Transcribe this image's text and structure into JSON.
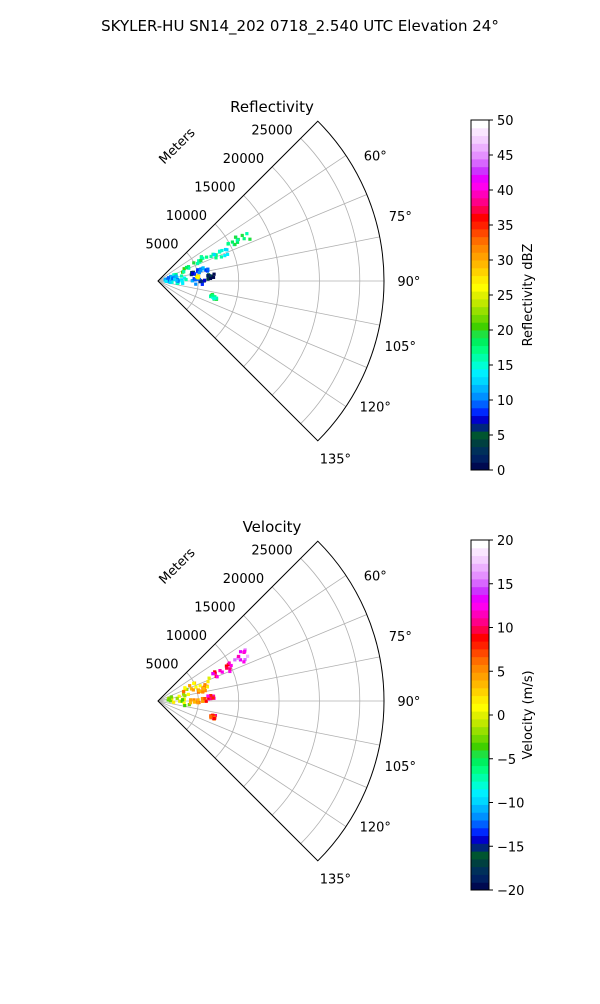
{
  "figure": {
    "title": "SKYLER-HU  SN14_202  0718_2.540 UTC Elevation 24°"
  },
  "chart_data": [
    {
      "type": "heatmap",
      "projection": "polar-sector",
      "title": "Reflectivity",
      "radial_label": "Meters",
      "radial_ticks": [
        "5000",
        "10000",
        "15000",
        "20000",
        "25000"
      ],
      "radial_tick_values": [
        5000,
        10000,
        15000,
        20000,
        25000
      ],
      "rlim": [
        0,
        28000
      ],
      "theta_range_deg": [
        45,
        135
      ],
      "theta_gridlines_deg": [
        45,
        56.25,
        67.5,
        78.75,
        90,
        101.25,
        112.5,
        123.75,
        135
      ],
      "angle_labels": [
        "60°",
        "75°",
        "90°",
        "105°",
        "120°",
        "135°"
      ],
      "angle_label_values": [
        60,
        75,
        90,
        105,
        120,
        135
      ],
      "grid": true,
      "colorbar": {
        "label": "Reflectivity dBZ",
        "min": 0,
        "max": 50,
        "ticks": [
          "0",
          "5",
          "10",
          "15",
          "20",
          "25",
          "30",
          "35",
          "40",
          "45",
          "50"
        ],
        "colors": [
          "#000a50",
          "#002060",
          "#00305a",
          "#004040",
          "#005530",
          "#00267a",
          "#0000cc",
          "#0028ff",
          "#0060ff",
          "#0090ff",
          "#00b4ff",
          "#00d8ff",
          "#00f0ff",
          "#00ffd4",
          "#00ffaa",
          "#00ff80",
          "#00f060",
          "#20e040",
          "#40d000",
          "#70d800",
          "#98e000",
          "#c0e800",
          "#e0f000",
          "#ffff00",
          "#ffec00",
          "#ffd200",
          "#ffb800",
          "#ffa000",
          "#ff8800",
          "#ff6c00",
          "#ff4800",
          "#ff2000",
          "#ff0000",
          "#ff0048",
          "#ff0088",
          "#ff00bb",
          "#ff00ee",
          "#e800ff",
          "#cc33ff",
          "#d866ff",
          "#e490ff",
          "#ecb0ff",
          "#f4cfff",
          "#fae6ff",
          "#ffffff"
        ]
      },
      "echo_clusters": [
        {
          "r_m": [
            3000,
            7800
          ],
          "theta_deg": [
            60,
            71
          ],
          "value": 18
        },
        {
          "r_m": [
            9800,
            12600
          ],
          "theta_deg": [
            60,
            66
          ],
          "value": 17
        },
        {
          "r_m": [
            7400,
            9600
          ],
          "theta_deg": [
            64,
            70
          ],
          "value": 16
        },
        {
          "r_m": [
            1500,
            3500
          ],
          "theta_deg": [
            68,
            98
          ],
          "value": 14
        },
        {
          "r_m": [
            800,
            2500
          ],
          "theta_deg": [
            72,
            100
          ],
          "value": 12
        },
        {
          "r_m": [
            5000,
            6400
          ],
          "theta_deg": [
            73,
            79
          ],
          "value": 10
        },
        {
          "r_m": [
            4000,
            6000
          ],
          "theta_deg": [
            86,
            95
          ],
          "value": 9
        },
        {
          "r_m": [
            6800,
            7600
          ],
          "theta_deg": [
            104,
            108
          ],
          "value": 18
        },
        {
          "r_m": [
            4800,
            5200
          ],
          "theta_deg": [
            82,
            86
          ],
          "value": 28
        },
        {
          "r_m": [
            4200,
            4600
          ],
          "theta_deg": [
            76,
            80
          ],
          "value": 6
        },
        {
          "r_m": [
            6200,
            7000
          ],
          "theta_deg": [
            83,
            88
          ],
          "value": 3
        }
      ]
    },
    {
      "type": "heatmap",
      "projection": "polar-sector",
      "title": "Velocity",
      "radial_label": "Meters",
      "radial_ticks": [
        "5000",
        "10000",
        "15000",
        "20000",
        "25000"
      ],
      "radial_tick_values": [
        5000,
        10000,
        15000,
        20000,
        25000
      ],
      "rlim": [
        0,
        28000
      ],
      "theta_range_deg": [
        45,
        135
      ],
      "theta_gridlines_deg": [
        45,
        56.25,
        67.5,
        78.75,
        90,
        101.25,
        112.5,
        123.75,
        135
      ],
      "angle_labels": [
        "60°",
        "75°",
        "90°",
        "105°",
        "120°",
        "135°"
      ],
      "angle_label_values": [
        60,
        75,
        90,
        105,
        120,
        135
      ],
      "grid": true,
      "colorbar": {
        "label": "Velocity (m/s)",
        "min": -20,
        "max": 20,
        "ticks": [
          "−20",
          "−15",
          "−10",
          "−5",
          "0",
          "5",
          "10",
          "15",
          "20"
        ],
        "colors": [
          "#000a50",
          "#002060",
          "#00305a",
          "#004040",
          "#005530",
          "#00267a",
          "#0000cc",
          "#0028ff",
          "#0060ff",
          "#0090ff",
          "#00b4ff",
          "#00d8ff",
          "#00f0ff",
          "#00ffd4",
          "#00ffaa",
          "#00ff80",
          "#00f060",
          "#20e040",
          "#40d000",
          "#70d800",
          "#98e000",
          "#c0e800",
          "#e0f000",
          "#ffff00",
          "#ffec00",
          "#ffd200",
          "#ffb800",
          "#ffa000",
          "#ff8800",
          "#ff6c00",
          "#ff4800",
          "#ff2000",
          "#ff0000",
          "#ff0048",
          "#ff0088",
          "#ff00bb",
          "#ff00ee",
          "#e800ff",
          "#cc33ff",
          "#d866ff",
          "#e490ff",
          "#ecb0ff",
          "#f4cfff",
          "#fae6ff",
          "#ffffff"
        ]
      },
      "echo_clusters": [
        {
          "r_m": [
            1000,
            4000
          ],
          "theta_deg": [
            68,
            100
          ],
          "value": -1
        },
        {
          "r_m": [
            3000,
            7000
          ],
          "theta_deg": [
            63,
            74
          ],
          "value": 3
        },
        {
          "r_m": [
            7600,
            10000
          ],
          "theta_deg": [
            62,
            69
          ],
          "value": 11
        },
        {
          "r_m": [
            9800,
            12600
          ],
          "theta_deg": [
            59,
            66
          ],
          "value": 14
        },
        {
          "r_m": [
            5000,
            6400
          ],
          "theta_deg": [
            73,
            79
          ],
          "value": 4
        },
        {
          "r_m": [
            4000,
            6000
          ],
          "theta_deg": [
            86,
            95
          ],
          "value": 6
        },
        {
          "r_m": [
            6800,
            7600
          ],
          "theta_deg": [
            104,
            108
          ],
          "value": 8
        },
        {
          "r_m": [
            6200,
            7000
          ],
          "theta_deg": [
            83,
            88
          ],
          "value": 10
        }
      ]
    }
  ]
}
